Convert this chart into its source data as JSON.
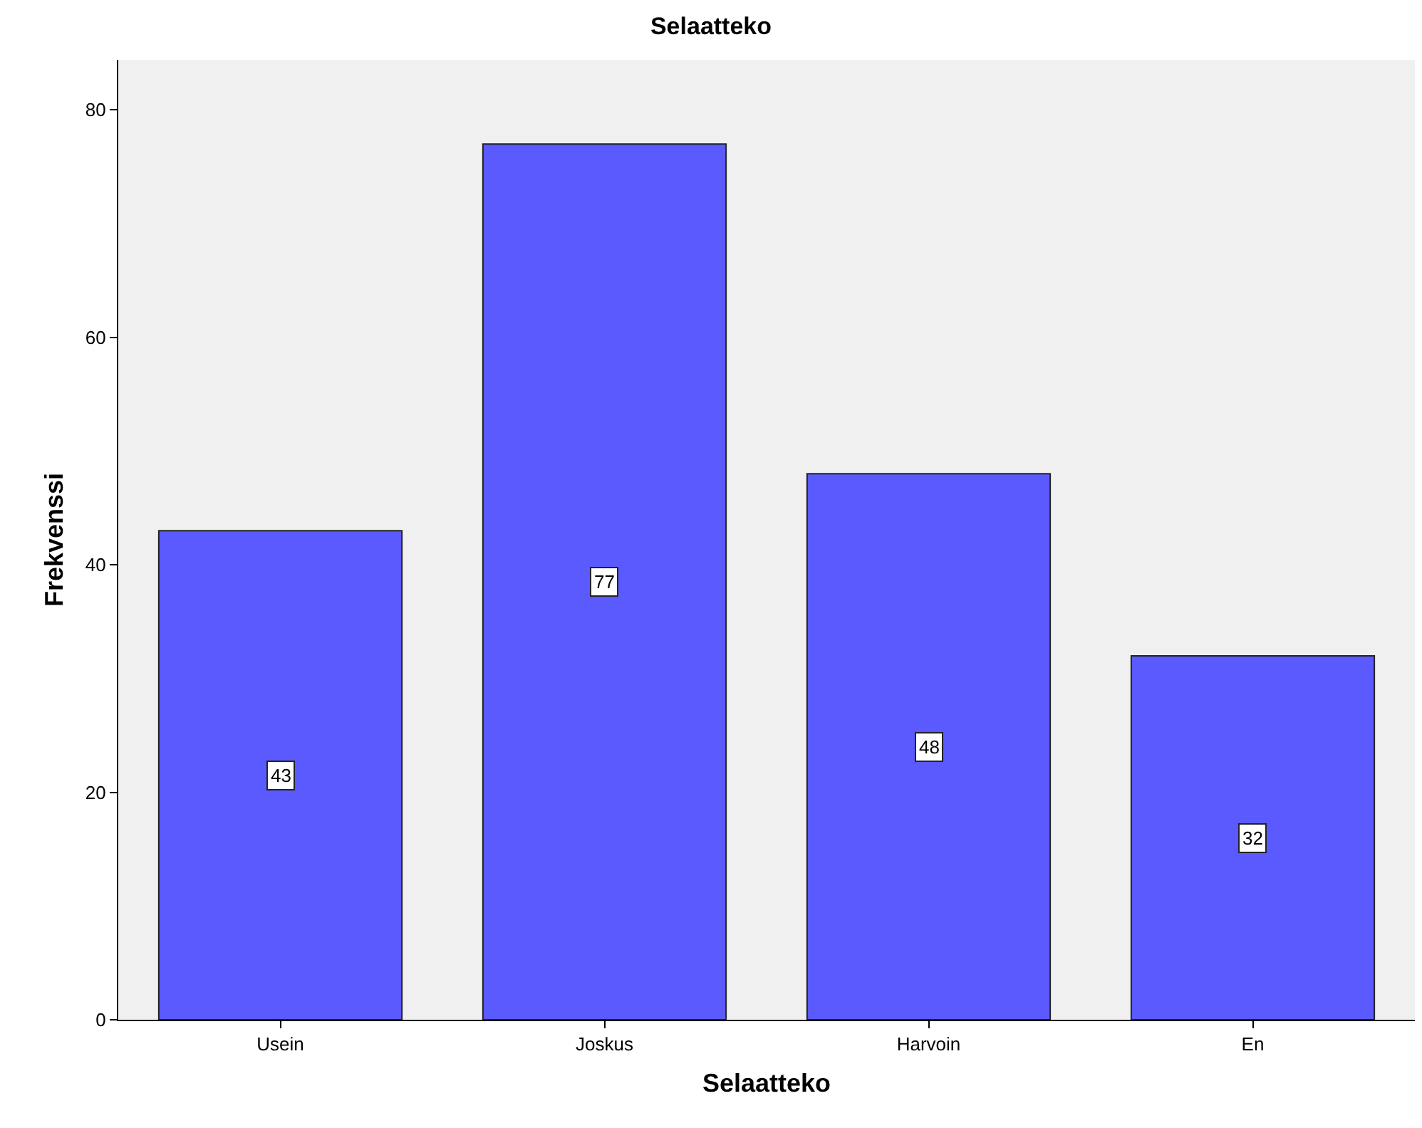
{
  "chart_data": {
    "type": "bar",
    "title": "Selaatteko",
    "xlabel": "Selaatteko",
    "ylabel": "Frekvenssi",
    "categories": [
      "Usein",
      "Joskus",
      "Harvoin",
      "En"
    ],
    "values": [
      43,
      77,
      48,
      32
    ],
    "color": "#5a5aff",
    "ylim": [
      0,
      84.4
    ],
    "yticks": [
      0,
      20,
      40,
      60,
      80
    ],
    "grid": false,
    "legend": false,
    "data_labels": true
  }
}
